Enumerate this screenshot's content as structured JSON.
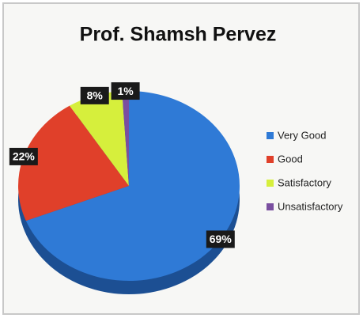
{
  "chart_data": {
    "type": "pie",
    "title": "Prof. Shamsh Pervez",
    "categories": [
      "Very Good",
      "Good",
      "Satisfactory",
      "Unsatisfactory"
    ],
    "values": [
      69,
      22,
      8,
      1
    ],
    "value_labels": [
      "69%",
      "22%",
      "8%",
      "1%"
    ],
    "colors": [
      "#2f7ad6",
      "#e0402a",
      "#d6ef3c",
      "#7a4fa0"
    ],
    "legend": "right"
  }
}
